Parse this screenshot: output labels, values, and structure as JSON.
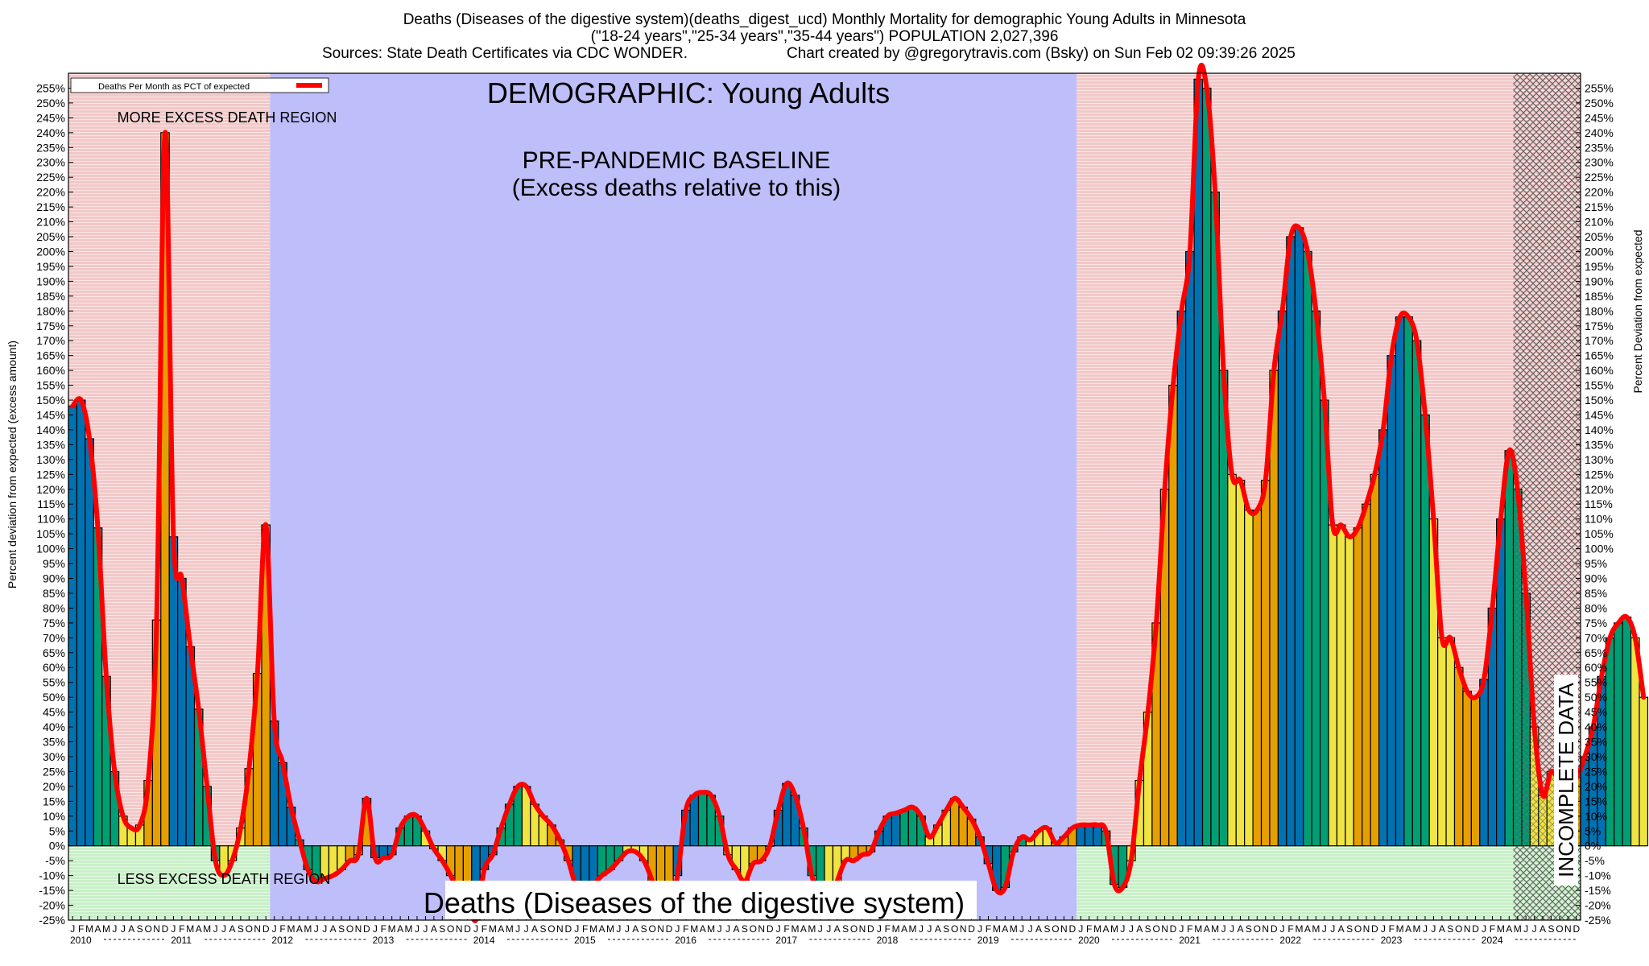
{
  "header": {
    "title": "Deaths (Diseases of the digestive system)(deaths_digest_ucd) Monthly Mortality for demographic Young Adults in Minnesota",
    "subtitle": "(\"18-24 years\",\"25-34 years\",\"35-44 years\") POPULATION 2,027,396",
    "sources": "Sources: State Death Certificates via CDC WONDER.",
    "credit": "Chart created by @gregorytravis.com (Bsky) on Sun Feb 02 09:39:26 2025"
  },
  "chart_data": {
    "type": "bar",
    "ylabel_left": "Percent deviation from expected (excess amount)",
    "ylabel_right": "Percent Deviation from expected",
    "ylim": [
      -25,
      260
    ],
    "ytick_step": 5,
    "tick_suffix": "%",
    "legend": "Deaths Per Month as PCT of expected",
    "annotations": {
      "demographic": "DEMOGRAPHIC: Young Adults",
      "more_region": "MORE EXCESS DEATH REGION",
      "baseline_1": "PRE-PANDEMIC BASELINE",
      "baseline_2": "(Excess deaths relative to this)",
      "less_region": "LESS EXCESS DEATH REGION",
      "cause": "Deaths (Diseases of the digestive system)",
      "incomplete": "INCOMPLETE DATA"
    },
    "years": [
      "2010",
      "2011",
      "2012",
      "2013",
      "2014",
      "2015",
      "2016",
      "2017",
      "2018",
      "2019",
      "2020",
      "2021",
      "2022",
      "2023",
      "2024"
    ],
    "month_letters": [
      "J",
      "F",
      "M",
      "A",
      "M",
      "J",
      "J",
      "A",
      "S",
      "O",
      "N",
      "D"
    ],
    "series_colors": {
      "line": "#ff0000",
      "q1": "#0072b2",
      "q2": "#009e73",
      "q3": "#f0e442",
      "q4": "#e69f00"
    },
    "regions": {
      "more_excess": "#f2c8c8",
      "less_excess": "#c8f0c8",
      "baseline": "#bebefa"
    },
    "values": [
      148,
      150,
      137,
      107,
      57,
      25,
      10,
      6,
      7,
      22,
      76,
      240,
      104,
      90,
      67,
      46,
      20,
      -5,
      -10,
      -5,
      6,
      26,
      58,
      108,
      42,
      28,
      13,
      2,
      -8,
      -12,
      -11,
      -10,
      -8,
      -5,
      -3,
      16,
      -4,
      -4,
      -3,
      6,
      10,
      10,
      5,
      -1,
      -5,
      -10,
      -16,
      -18,
      -25,
      -8,
      -3,
      6,
      14,
      20,
      20,
      14,
      10,
      7,
      2,
      -5,
      -14,
      -15,
      -13,
      -10,
      -8,
      -5,
      -2,
      -2,
      -5,
      -12,
      -22,
      -20,
      -10,
      12,
      17,
      18,
      17,
      10,
      -3,
      -8,
      -12,
      -6,
      -5,
      0,
      12,
      21,
      17,
      6,
      -10,
      -18,
      -20,
      -12,
      -5,
      -5,
      -3,
      -2,
      5,
      10,
      11,
      12,
      13,
      10,
      3,
      7,
      12,
      16,
      13,
      9,
      3,
      -6,
      -15,
      -14,
      -2,
      3,
      2,
      5,
      6,
      1,
      3,
      6,
      7,
      7,
      7,
      5,
      -13,
      -14,
      -5,
      22,
      45,
      75,
      120,
      155,
      180,
      200,
      258,
      255,
      220,
      160,
      125,
      123,
      113,
      113,
      123,
      160,
      180,
      205,
      208,
      200,
      180,
      150,
      108,
      108,
      104,
      107,
      115,
      125,
      140,
      165,
      178,
      178,
      170,
      145,
      110,
      70,
      70,
      60,
      52,
      50,
      56,
      80,
      110,
      133,
      120,
      85,
      40,
      17,
      25,
      22,
      23,
      23,
      30,
      40,
      57,
      70,
      75,
      77,
      70,
      50
    ],
    "incomplete_from_index": 172
  }
}
